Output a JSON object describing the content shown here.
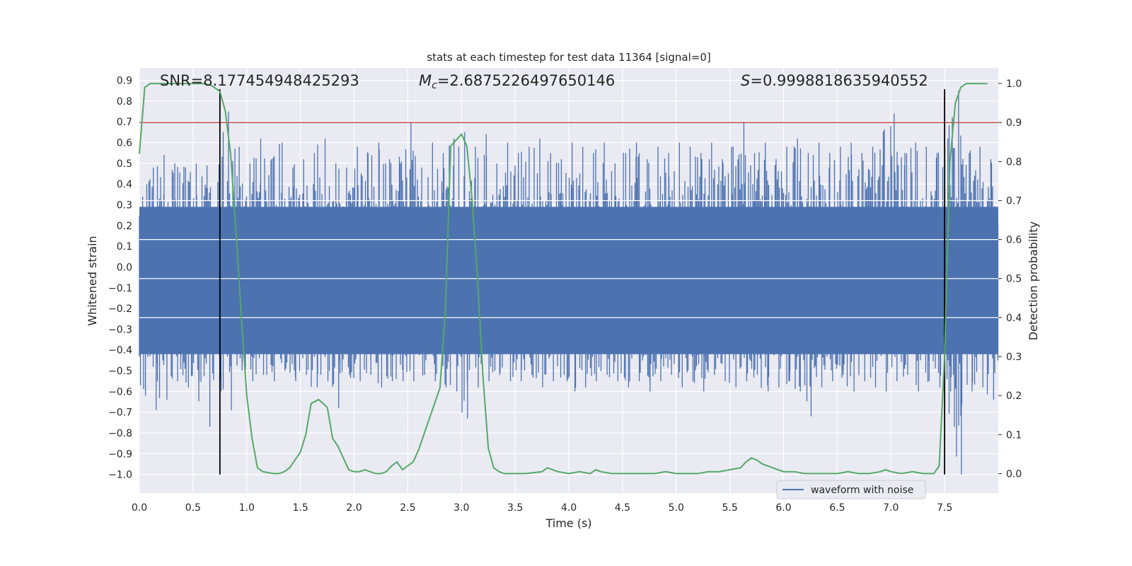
{
  "chart_data": {
    "type": "line",
    "title": "stats at each timestep for test data 11364 [signal=0]",
    "xlabel": "Time (s)",
    "ylabel_left": "Whitened strain",
    "ylabel_right": "Detection probability",
    "xlim": [
      0,
      8
    ],
    "ylim_left": [
      -1.09,
      0.96
    ],
    "ylim_right": [
      -0.05,
      1.04
    ],
    "x_ticks": [
      "0.0",
      "0.5",
      "1.0",
      "1.5",
      "2.0",
      "2.5",
      "3.0",
      "3.5",
      "4.0",
      "4.5",
      "5.0",
      "5.5",
      "6.0",
      "6.5",
      "7.0",
      "7.5"
    ],
    "y_left_ticks": [
      "0.9",
      "0.8",
      "0.7",
      "0.6",
      "0.5",
      "0.4",
      "0.3",
      "0.2",
      "0.1",
      "0.0",
      "−0.1",
      "−0.2",
      "−0.3",
      "−0.4",
      "−0.5",
      "−0.6",
      "−0.7",
      "−0.8",
      "−0.9",
      "−1.0"
    ],
    "y_right_ticks": [
      "1.0",
      "0.9",
      "0.8",
      "0.7",
      "0.6",
      "0.5",
      "0.4",
      "0.3",
      "0.2",
      "0.1",
      "0.0"
    ],
    "annotations": {
      "snr": "SNR=8.177454948425293",
      "mc_symbol": "M",
      "mc_sub": "c",
      "mc_value": "=2.6875226497650146",
      "s_symbol": "S",
      "s_value": "=0.9998818635940552"
    },
    "threshold": {
      "axis": "right",
      "value": 0.9
    },
    "vlines": [
      0.75,
      7.5
    ],
    "legend": {
      "entries": [
        "waveform with noise"
      ],
      "placement": "lower right"
    },
    "grid": true,
    "series": [
      {
        "name": "waveform with noise",
        "axis": "left",
        "note": "dense noise, approx. envelope",
        "x": [
          0.0,
          0.1,
          0.2,
          0.3,
          0.4,
          0.5,
          0.6,
          0.7,
          0.8,
          0.9,
          1.0,
          1.1,
          1.2,
          1.3,
          1.4,
          1.5,
          1.6,
          1.7,
          1.8,
          1.9,
          2.0,
          2.1,
          2.2,
          2.3,
          2.4,
          2.5,
          2.6,
          2.7,
          2.8,
          2.9,
          3.0,
          3.1,
          3.2,
          3.3,
          3.4,
          3.5,
          3.6,
          3.7,
          3.8,
          3.9,
          4.0,
          4.1,
          4.2,
          4.3,
          4.4,
          4.5,
          4.6,
          4.7,
          4.8,
          4.9,
          5.0,
          5.1,
          5.2,
          5.3,
          5.4,
          5.5,
          5.6,
          5.7,
          5.8,
          5.9,
          6.0,
          6.1,
          6.2,
          6.3,
          6.4,
          6.5,
          6.6,
          6.7,
          6.8,
          6.9,
          7.0,
          7.1,
          7.2,
          7.3,
          7.4,
          7.5,
          7.6,
          7.7,
          7.8,
          7.9,
          8.0
        ],
        "upper": [
          0.34,
          0.48,
          0.54,
          0.5,
          0.48,
          0.5,
          0.49,
          0.41,
          0.75,
          0.58,
          0.5,
          0.62,
          0.52,
          0.6,
          0.48,
          0.52,
          0.55,
          0.62,
          0.5,
          0.48,
          0.58,
          0.55,
          0.6,
          0.52,
          0.5,
          0.7,
          0.48,
          0.6,
          0.55,
          0.62,
          0.65,
          0.58,
          0.64,
          0.5,
          0.6,
          0.55,
          0.58,
          0.62,
          0.55,
          0.52,
          0.6,
          0.58,
          0.55,
          0.6,
          0.5,
          0.55,
          0.6,
          0.52,
          0.58,
          0.55,
          0.6,
          0.58,
          0.55,
          0.6,
          0.52,
          0.58,
          0.7,
          0.55,
          0.6,
          0.52,
          0.58,
          0.62,
          0.55,
          0.6,
          0.55,
          0.58,
          0.6,
          0.55,
          0.58,
          0.62,
          0.74,
          0.55,
          0.6,
          0.58,
          0.55,
          0.62,
          0.85,
          0.55,
          0.58,
          0.52,
          0.55
        ],
        "lower": [
          -0.62,
          -0.69,
          -0.64,
          -0.55,
          -0.58,
          -0.55,
          -0.77,
          -0.55,
          -0.69,
          -0.5,
          -0.55,
          -0.52,
          -0.55,
          -0.5,
          -0.55,
          -0.52,
          -0.58,
          -0.55,
          -0.68,
          -0.52,
          -0.55,
          -0.52,
          -0.58,
          -0.55,
          -0.55,
          -0.55,
          -0.52,
          -0.55,
          -0.58,
          -0.6,
          -0.73,
          -0.58,
          -0.55,
          -0.52,
          -0.55,
          -0.55,
          -0.52,
          -0.58,
          -0.55,
          -0.52,
          -0.6,
          -0.58,
          -0.55,
          -0.52,
          -0.55,
          -0.58,
          -0.55,
          -0.6,
          -0.55,
          -0.52,
          -0.58,
          -0.55,
          -0.6,
          -0.52,
          -0.55,
          -0.58,
          -0.55,
          -0.52,
          -0.6,
          -0.58,
          -0.55,
          -0.6,
          -0.72,
          -0.58,
          -0.55,
          -0.52,
          -0.6,
          -0.55,
          -0.58,
          -0.6,
          -0.55,
          -0.52,
          -0.6,
          -0.55,
          -0.58,
          -0.6,
          -1.0,
          -0.6,
          -0.58,
          -0.64,
          -0.55
        ]
      },
      {
        "name": "",
        "axis": "right",
        "x": [
          0.0,
          0.05,
          0.1,
          0.2,
          0.3,
          0.4,
          0.5,
          0.6,
          0.67,
          0.75,
          0.8,
          0.85,
          0.9,
          0.95,
          1.0,
          1.05,
          1.1,
          1.15,
          1.25,
          1.3,
          1.35,
          1.4,
          1.5,
          1.55,
          1.6,
          1.67,
          1.75,
          1.8,
          1.85,
          1.95,
          2.0,
          2.05,
          2.1,
          2.15,
          2.2,
          2.25,
          2.3,
          2.35,
          2.4,
          2.45,
          2.5,
          2.55,
          2.6,
          2.7,
          2.8,
          2.85,
          2.9,
          3.0,
          3.05,
          3.1,
          3.15,
          3.2,
          3.25,
          3.3,
          3.35,
          3.4,
          3.5,
          3.6,
          3.75,
          3.8,
          3.85,
          3.9,
          4.0,
          4.1,
          4.2,
          4.25,
          4.3,
          4.4,
          4.5,
          4.6,
          4.7,
          4.8,
          4.9,
          5.0,
          5.1,
          5.2,
          5.3,
          5.4,
          5.5,
          5.6,
          5.65,
          5.7,
          5.75,
          5.8,
          5.85,
          5.9,
          6.0,
          6.1,
          6.2,
          6.3,
          6.4,
          6.5,
          6.6,
          6.7,
          6.8,
          6.9,
          6.95,
          7.0,
          7.1,
          7.2,
          7.3,
          7.4,
          7.45,
          7.5,
          7.55,
          7.6,
          7.65,
          7.7,
          7.8,
          7.9
        ],
        "y": [
          0.82,
          0.99,
          1.0,
          1.0,
          1.0,
          1.0,
          1.0,
          1.0,
          0.995,
          0.98,
          0.93,
          0.82,
          0.62,
          0.4,
          0.2,
          0.09,
          0.015,
          0.005,
          0.0,
          0.0,
          0.005,
          0.015,
          0.055,
          0.1,
          0.18,
          0.19,
          0.17,
          0.09,
          0.07,
          0.01,
          0.005,
          0.005,
          0.01,
          0.005,
          0.0,
          0.0,
          0.005,
          0.02,
          0.03,
          0.01,
          0.02,
          0.03,
          0.06,
          0.14,
          0.22,
          0.42,
          0.84,
          0.87,
          0.84,
          0.7,
          0.5,
          0.25,
          0.065,
          0.015,
          0.005,
          0.0,
          0.0,
          0.0,
          0.005,
          0.015,
          0.01,
          0.005,
          0.0,
          0.005,
          0.0,
          0.01,
          0.005,
          0.0,
          0.0,
          0.0,
          0.0,
          0.0,
          0.005,
          0.0,
          0.0,
          0.0,
          0.005,
          0.005,
          0.01,
          0.015,
          0.03,
          0.04,
          0.035,
          0.025,
          0.02,
          0.015,
          0.005,
          0.005,
          0.0,
          0.0,
          0.0,
          0.0,
          0.005,
          0.0,
          0.0,
          0.005,
          0.01,
          0.005,
          0.0,
          0.005,
          0.0,
          0.0,
          0.02,
          0.3,
          0.8,
          0.95,
          0.99,
          1.0,
          1.0,
          1.0
        ]
      }
    ],
    "colors": {
      "waveform": "#4c72b0",
      "probability": "#55a868",
      "threshold": "#c44e52",
      "vline": "#000000",
      "plot_bg": "#eaeaf2",
      "grid": "#ffffff",
      "text": "#262626"
    }
  }
}
